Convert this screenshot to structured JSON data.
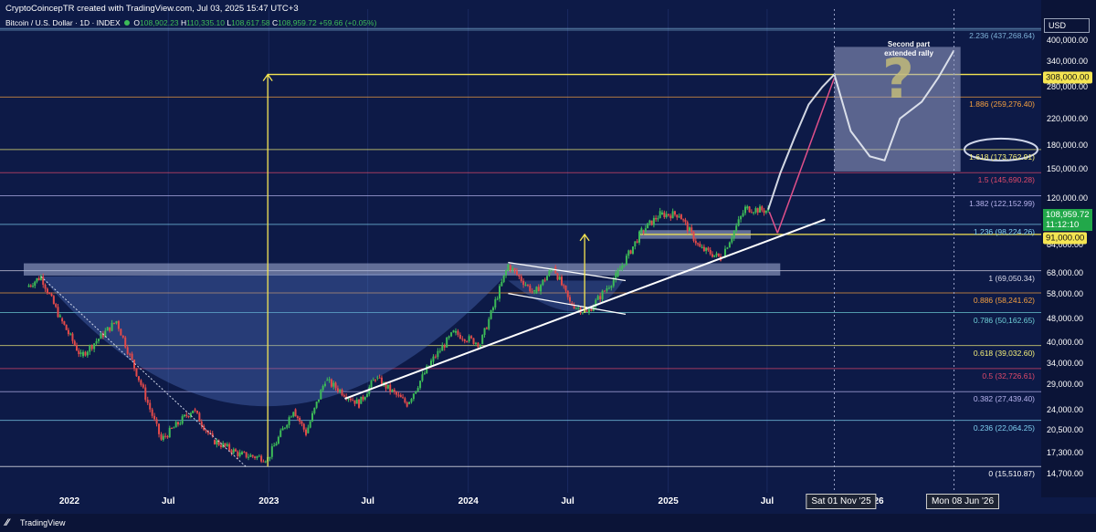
{
  "header": {
    "top_line": "CryptoCoincepTR created with TradingView.com, Jul 03, 2025 15:47 UTC+3",
    "symbol": "Bitcoin / U.S. Dollar · 1D · INDEX",
    "ohlc": {
      "o_label": "O",
      "o": "108,902.23",
      "h_label": "H",
      "h": "110,335.10",
      "l_label": "L",
      "l": "108,617.58",
      "c_label": "C",
      "c": "108,959.72",
      "change": "+59.66 (+0.05%)"
    }
  },
  "price_axis": {
    "currency": "USD",
    "ticks": [
      "400,000.00",
      "340,000.00",
      "280,000.00",
      "220,000.00",
      "180,000.00",
      "150,000.00",
      "120,000.00",
      "84,000.00",
      "68,000.00",
      "58,000.00",
      "48,000.00",
      "40,000.00",
      "34,000.00",
      "29,000.00",
      "24,000.00",
      "20,500.00",
      "17,300.00",
      "14,700.00"
    ]
  },
  "price_tags": {
    "target": "308,000.00",
    "current_price": "108,959.72",
    "countdown": "11:12:10",
    "support": "91,000.00"
  },
  "time_axis": {
    "labels": [
      "2022",
      "Jul",
      "2023",
      "Jul",
      "2024",
      "Jul",
      "2025",
      "Jul",
      "26"
    ],
    "crosshair_dates": [
      "Sat 01 Nov '25",
      "Mon 08 Jun '26"
    ]
  },
  "fib_levels": [
    {
      "text": "2.236 (437,268.64)",
      "color": "#7fb2d8"
    },
    {
      "text": "1.886 (259,276.40)",
      "color": "#f5a040"
    },
    {
      "text": "1.618 (173,762.91)",
      "color": "#f5f07a"
    },
    {
      "text": "1.5 (145,690.28)",
      "color": "#e04a6a"
    },
    {
      "text": "1.382 (122,152.99)",
      "color": "#b8b4ee"
    },
    {
      "text": "1.236 (98,224.26)",
      "color": "#7fd0f0"
    },
    {
      "text": "1 (69,050.34)",
      "color": "#d8d8e8"
    },
    {
      "text": "0.886 (58,241.62)",
      "color": "#f5a040"
    },
    {
      "text": "0.786 (50,162.65)",
      "color": "#6fd0d8"
    },
    {
      "text": "0.618 (39,032.60)",
      "color": "#f5f07a"
    },
    {
      "text": "0.5 (32,726.61)",
      "color": "#e04a6a"
    },
    {
      "text": "0.382 (27,439.40)",
      "color": "#b8b4ee"
    },
    {
      "text": "0.236 (22,064.25)",
      "color": "#7fd0f0"
    },
    {
      "text": "0 (15,510.87)",
      "color": "#ffffff"
    }
  ],
  "annotation": {
    "line1": "Second part",
    "line2": "extended rally",
    "question": "?"
  },
  "footer": {
    "brand": "TradingView"
  },
  "colors": {
    "background": "#0d1a47",
    "candle_up": "#3dbb58",
    "candle_down": "#e34a4a",
    "projection": "#e8ecf4",
    "target_tag": "#f5e552",
    "current_tag": "#22a84a"
  },
  "chart_data": {
    "type": "candlestick",
    "symbol": "Bitcoin / U.S. Dollar",
    "interval": "1D",
    "y_scale": "log",
    "ylim": [
      14000,
      480000
    ],
    "x_range": [
      "2021-10-15",
      "2026-07-15"
    ],
    "close_series": [
      {
        "date": "2021-10-15",
        "value": 61000
      },
      {
        "date": "2021-11-10",
        "value": 66000
      },
      {
        "date": "2021-12-15",
        "value": 48000
      },
      {
        "date": "2022-01-22",
        "value": 36000
      },
      {
        "date": "2022-03-28",
        "value": 47000
      },
      {
        "date": "2022-05-12",
        "value": 29000
      },
      {
        "date": "2022-06-18",
        "value": 19000
      },
      {
        "date": "2022-08-15",
        "value": 24000
      },
      {
        "date": "2022-09-20",
        "value": 19000
      },
      {
        "date": "2022-11-09",
        "value": 17000
      },
      {
        "date": "2022-12-30",
        "value": 16500
      },
      {
        "date": "2023-02-15",
        "value": 24000
      },
      {
        "date": "2023-03-10",
        "value": 20000
      },
      {
        "date": "2023-04-14",
        "value": 30000
      },
      {
        "date": "2023-06-15",
        "value": 25000
      },
      {
        "date": "2023-07-15",
        "value": 30500
      },
      {
        "date": "2023-09-11",
        "value": 25000
      },
      {
        "date": "2023-10-25",
        "value": 34500
      },
      {
        "date": "2023-12-05",
        "value": 43000
      },
      {
        "date": "2024-01-23",
        "value": 39500
      },
      {
        "date": "2024-03-14",
        "value": 72000
      },
      {
        "date": "2024-05-01",
        "value": 58000
      },
      {
        "date": "2024-06-05",
        "value": 71000
      },
      {
        "date": "2024-07-05",
        "value": 54000
      },
      {
        "date": "2024-08-05",
        "value": 50000
      },
      {
        "date": "2024-09-27",
        "value": 66000
      },
      {
        "date": "2024-11-13",
        "value": 93000
      },
      {
        "date": "2024-12-17",
        "value": 106000
      },
      {
        "date": "2025-01-21",
        "value": 106000
      },
      {
        "date": "2025-02-28",
        "value": 82000
      },
      {
        "date": "2025-04-07",
        "value": 76000
      },
      {
        "date": "2025-05-22",
        "value": 111000
      },
      {
        "date": "2025-07-03",
        "value": 108960
      }
    ],
    "projection": [
      {
        "date": "2025-07-03",
        "value": 110000
      },
      {
        "date": "2025-07-25",
        "value": 145000
      },
      {
        "date": "2025-08-20",
        "value": 190000
      },
      {
        "date": "2025-09-15",
        "value": 245000
      },
      {
        "date": "2025-10-10",
        "value": 280000
      },
      {
        "date": "2025-11-01",
        "value": 308000
      },
      {
        "date": "2025-12-01",
        "value": 200000
      },
      {
        "date": "2026-01-05",
        "value": 165000
      },
      {
        "date": "2026-02-01",
        "value": 160000
      },
      {
        "date": "2026-03-01",
        "value": 220000
      },
      {
        "date": "2026-04-10",
        "value": 250000
      },
      {
        "date": "2026-05-10",
        "value": 300000
      },
      {
        "date": "2026-06-08",
        "value": 370000
      }
    ],
    "fibonacci": [
      {
        "level": 2.236,
        "price": 437268.64
      },
      {
        "level": 1.886,
        "price": 259276.4
      },
      {
        "level": 1.618,
        "price": 173762.91
      },
      {
        "level": 1.5,
        "price": 145690.28
      },
      {
        "level": 1.382,
        "price": 122152.99
      },
      {
        "level": 1.236,
        "price": 98224.26
      },
      {
        "level": 1,
        "price": 69050.34
      },
      {
        "level": 0.886,
        "price": 58241.62
      },
      {
        "level": 0.786,
        "price": 50162.65
      },
      {
        "level": 0.618,
        "price": 39032.6
      },
      {
        "level": 0.5,
        "price": 32726.61
      },
      {
        "level": 0.382,
        "price": 27439.4
      },
      {
        "level": 0.236,
        "price": 22064.25
      },
      {
        "level": 0,
        "price": 15510.87
      }
    ],
    "horizontal_levels": [
      308000,
      91000
    ],
    "trendline": [
      {
        "date": "2023-05-20",
        "value": 26000
      },
      {
        "date": "2025-10-15",
        "value": 102000
      }
    ],
    "measured_moves": [
      {
        "date": "2022-12-30",
        "from": 15500,
        "to": 308000
      },
      {
        "date": "2024-08-01",
        "from": 50000,
        "to": 91000
      }
    ]
  }
}
